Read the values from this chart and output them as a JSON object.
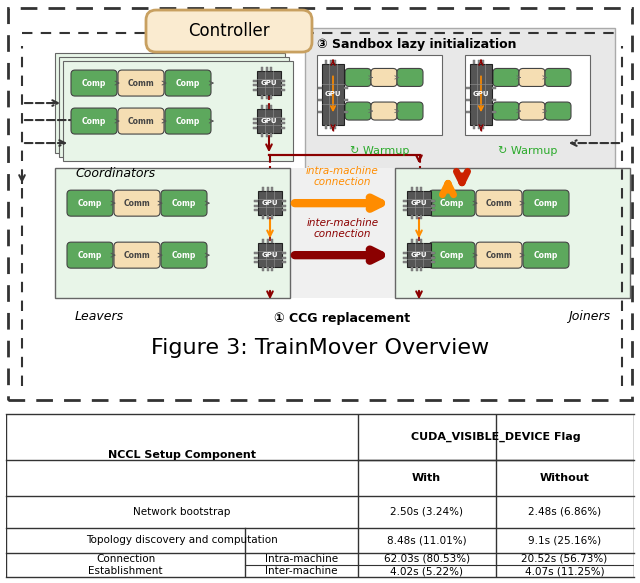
{
  "figure_title": "Figure 3: TrainMover Overview",
  "bg_color": "#ffffff",
  "green_color": "#5da85d",
  "beige_color": "#f5deb3",
  "controller_fill": "#faebd0",
  "controller_border": "#c8a060",
  "sandbox_bg": "#e8e8e8",
  "node_bg": "#e8f0e8",
  "arrow_orange": "#ff8c00",
  "arrow_darkred": "#8b0000",
  "arrow_red": "#cc2200",
  "gpu_dark": "#555555",
  "table_rows": [
    [
      "Network bootstrap",
      "",
      "2.50s (3.24%)",
      "2.48s (6.86%)"
    ],
    [
      "Topology discovery and computation",
      "",
      "8.48s (11.01%)",
      "9.1s (25.16%)"
    ],
    [
      "Connection\nEstablishment",
      "Intra-machine",
      "62.03s (80.53%)",
      "20.52s (56.73%)"
    ],
    [
      "",
      "Inter-machine",
      "4.02s (5.22%)",
      "4.07s (11.25%)"
    ]
  ]
}
